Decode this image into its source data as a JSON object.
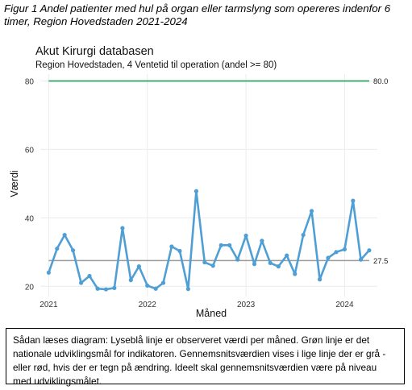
{
  "figure_caption": "Figur 1 Andel patienter med hul på organ eller tarmslyng som opereres indenfor 6 timer, Region Hovedstaden 2021-2024",
  "explanation": "Sådan læses diagram: Lyseblå linje er observeret værdi per måned. Grøn linje er det nationale udviklingsmål for indikatoren. Gennemsnitsværdien vises i lige linje der er grå - eller rød, hvis der er tegn på ændring. Ideelt skal gennemsnitsværdien være på niveau med udviklingsmålet.",
  "chart_data": {
    "type": "line",
    "title": "Akut Kirurgi databasen",
    "subtitle": "Region Hovedstaden, 4  Ventetid til operation (andel >= 80)",
    "xlabel": "Måned",
    "ylabel": "Værdi",
    "ylim": [
      17,
      82
    ],
    "xlim": [
      "2020-12-01",
      "2024-05-01"
    ],
    "yticks": [
      20,
      40,
      60,
      80
    ],
    "xticks": [
      "2021",
      "2022",
      "2023",
      "2024"
    ],
    "grid": true,
    "target": {
      "value": 80.0,
      "label": "80.0",
      "color": "#2ca25f"
    },
    "mean": {
      "value": 27.5,
      "label": "27.5",
      "color": "#9a9a9a"
    },
    "series_color": "#4f9fd5",
    "series": [
      {
        "x": [
          "2021-01",
          "2021-02",
          "2021-03",
          "2021-04",
          "2021-05",
          "2021-06",
          "2021-07",
          "2021-08",
          "2021-09",
          "2021-10",
          "2021-11",
          "2021-12",
          "2022-01",
          "2022-02",
          "2022-03",
          "2022-04",
          "2022-05",
          "2022-06",
          "2022-07",
          "2022-08",
          "2022-09",
          "2022-10",
          "2022-11",
          "2022-12",
          "2023-01",
          "2023-02",
          "2023-03",
          "2023-04",
          "2023-05",
          "2023-06",
          "2023-07",
          "2023-08",
          "2023-09",
          "2023-10",
          "2023-11",
          "2023-12",
          "2024-01",
          "2024-02",
          "2024-03",
          "2024-04"
        ],
        "values": [
          24.0,
          31.0,
          35.0,
          30.5,
          21.0,
          23.0,
          19.3,
          19.1,
          19.5,
          37.0,
          21.8,
          25.8,
          20.2,
          19.3,
          21.0,
          31.6,
          30.3,
          19.2,
          47.8,
          27.0,
          26.0,
          32.0,
          32.0,
          27.8,
          34.8,
          26.5,
          33.3,
          26.8,
          25.8,
          29.0,
          23.6,
          35.0,
          42.0,
          22.0,
          28.3,
          30.0,
          30.8,
          45.0,
          27.8,
          30.5
        ]
      }
    ]
  }
}
